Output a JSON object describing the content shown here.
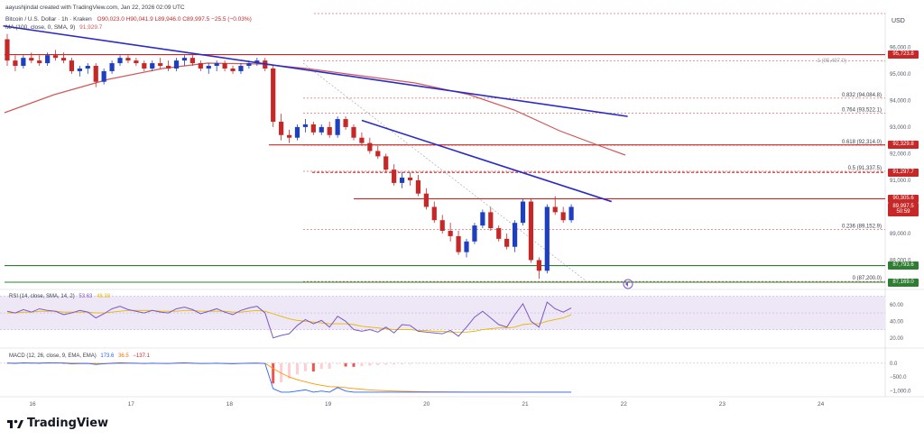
{
  "header": {
    "created_by": "aayushjindal created with TradingView.com, Jan 22, 2026 02:09 UTC",
    "symbol_line": "Bitcoin / U.S. Dollar · 1h · Kraken",
    "ohlc": "O90,023.0  H90,041.9  L89,946.0  C89,997.5  −25.5 (−0.03%)",
    "ma_line": "MA (100, close, 0, SMA, 9)",
    "ma_value": "91,929.7"
  },
  "currency": "USD",
  "chart_data": {
    "type": "candlestick",
    "x_ticks": [
      "16",
      "17",
      "18",
      "19",
      "20",
      "21",
      "22",
      "23",
      "24"
    ],
    "y_ticks": [
      96000,
      95000,
      94000,
      93000,
      92000,
      91000,
      90000,
      89000,
      88000
    ],
    "y_tick_labels": [
      "96,000.0",
      "95,000.0",
      "94,000.0",
      "93,000.0",
      "92,000.0",
      "91,000.0",
      "90,000.0",
      "89,000.0",
      "88,000.0"
    ],
    "ylim": [
      87000,
      97300
    ],
    "candles": [
      [
        96300,
        96500,
        95300,
        95500
      ],
      [
        95500,
        95700,
        95100,
        95300
      ],
      [
        95300,
        95700,
        95200,
        95600
      ],
      [
        95600,
        95800,
        95400,
        95500
      ],
      [
        95500,
        95700,
        95300,
        95400
      ],
      [
        95400,
        95800,
        95300,
        95700
      ],
      [
        95700,
        95900,
        95500,
        95600
      ],
      [
        95600,
        95800,
        95400,
        95500
      ],
      [
        95500,
        95600,
        95000,
        95100
      ],
      [
        95100,
        95300,
        94900,
        95200
      ],
      [
        95200,
        95400,
        95000,
        95300
      ],
      [
        95300,
        95400,
        94500,
        94700
      ],
      [
        94700,
        95200,
        94600,
        95100
      ],
      [
        95100,
        95500,
        95000,
        95400
      ],
      [
        95400,
        95700,
        95300,
        95600
      ],
      [
        95600,
        95700,
        95400,
        95500
      ],
      [
        95500,
        95600,
        95300,
        95400
      ],
      [
        95400,
        95500,
        95100,
        95200
      ],
      [
        95200,
        95500,
        95100,
        95400
      ],
      [
        95400,
        95600,
        95200,
        95300
      ],
      [
        95300,
        95500,
        95100,
        95200
      ],
      [
        95200,
        95600,
        95100,
        95500
      ],
      [
        95500,
        95700,
        95300,
        95600
      ],
      [
        95600,
        95700,
        95300,
        95400
      ],
      [
        95400,
        95500,
        95100,
        95200
      ],
      [
        95200,
        95400,
        95000,
        95300
      ],
      [
        95300,
        95500,
        95100,
        95400
      ],
      [
        95400,
        95500,
        95100,
        95200
      ],
      [
        95200,
        95300,
        95000,
        95100
      ],
      [
        95100,
        95400,
        95000,
        95300
      ],
      [
        95300,
        95500,
        95200,
        95400
      ],
      [
        95400,
        95600,
        95300,
        95500
      ],
      [
        95500,
        95600,
        95100,
        95200
      ],
      [
        95200,
        95300,
        93000,
        93200
      ],
      [
        93200,
        93500,
        92500,
        92700
      ],
      [
        92700,
        92900,
        92400,
        92600
      ],
      [
        92600,
        93100,
        92500,
        93000
      ],
      [
        93000,
        93300,
        92800,
        93100
      ],
      [
        93100,
        93200,
        92700,
        92800
      ],
      [
        92800,
        93100,
        92700,
        93000
      ],
      [
        93000,
        93200,
        92600,
        92700
      ],
      [
        92700,
        93400,
        92600,
        93300
      ],
      [
        93300,
        93400,
        92900,
        93000
      ],
      [
        93000,
        93100,
        92500,
        92600
      ],
      [
        92600,
        92800,
        92300,
        92400
      ],
      [
        92400,
        92600,
        92000,
        92100
      ],
      [
        92100,
        92300,
        91800,
        91900
      ],
      [
        91900,
        92000,
        91300,
        91400
      ],
      [
        91400,
        91600,
        90800,
        90900
      ],
      [
        90900,
        91300,
        90700,
        91100
      ],
      [
        91100,
        91300,
        90800,
        91000
      ],
      [
        91000,
        91200,
        90400,
        90500
      ],
      [
        90500,
        90700,
        89900,
        90000
      ],
      [
        90000,
        90200,
        89400,
        89500
      ],
      [
        89500,
        89700,
        89000,
        89100
      ],
      [
        89100,
        89400,
        88700,
        88900
      ],
      [
        88900,
        89100,
        88200,
        88300
      ],
      [
        88300,
        88800,
        88100,
        88700
      ],
      [
        88700,
        89400,
        88600,
        89300
      ],
      [
        89300,
        89900,
        89200,
        89800
      ],
      [
        89800,
        90000,
        89100,
        89200
      ],
      [
        89200,
        89300,
        88700,
        88800
      ],
      [
        88800,
        89000,
        88400,
        88500
      ],
      [
        88500,
        89500,
        88300,
        89400
      ],
      [
        89400,
        90300,
        89300,
        90200
      ],
      [
        90200,
        90300,
        87900,
        88000
      ],
      [
        88000,
        88100,
        87300,
        87600
      ],
      [
        87600,
        90100,
        87500,
        90000
      ],
      [
        90000,
        90400,
        89700,
        89800
      ],
      [
        89800,
        90000,
        89400,
        89500
      ],
      [
        89500,
        90100,
        89400,
        90000
      ]
    ],
    "horizontal_levels": [
      {
        "price": 95723.8,
        "color": "#c62828",
        "style": "solid"
      },
      {
        "price": 92329.8,
        "color": "#c62828",
        "style": "solid"
      },
      {
        "price": 91297.7,
        "color": "#c62828",
        "style": "dashed"
      },
      {
        "price": 90305.6,
        "color": "#c62828",
        "style": "solid"
      },
      {
        "price": 87793.6,
        "color": "#2e7d32",
        "style": "solid"
      },
      {
        "price": 87169.0,
        "color": "#2e7d32",
        "style": "solid"
      }
    ],
    "fib_levels": [
      {
        "label": "0.832 (94,084.8)",
        "price": 94084.8
      },
      {
        "label": "0.764 (93,522.1)",
        "price": 93522.1
      },
      {
        "label": "0.618 (92,314.0)",
        "price": 92314.0
      },
      {
        "label": "0.5 (91,337.5)",
        "price": 91337.5
      },
      {
        "label": "0.236 (89,152.9)",
        "price": 89152.9
      },
      {
        "label": "0 (87,200.0)",
        "price": 87200.0
      }
    ],
    "top_level_label": "1 (95,497.0)",
    "top_level_price": 95497.0,
    "trendlines": [
      {
        "from": [
          -0.5,
          96800
        ],
        "to": [
          77,
          93400
        ]
      },
      {
        "from": [
          44,
          93250
        ],
        "to": [
          75,
          90200
        ]
      }
    ],
    "price_tags": [
      {
        "label": "95,723.8",
        "price": 95723.8,
        "color": "#c62828"
      },
      {
        "label": "92,329.8",
        "price": 92329.8,
        "color": "#c62828"
      },
      {
        "label": "91,297.7",
        "price": 91297.7,
        "color": "#c62828"
      },
      {
        "label": "90,305.6",
        "price": 90305.6,
        "color": "#c62828"
      },
      {
        "label": "89,997.5",
        "price": 89997.5,
        "color": "#c62828"
      },
      {
        "label": "50:59",
        "price": 89800,
        "color": "#c62828"
      },
      {
        "label": "87,793.6",
        "price": 87793.6,
        "color": "#2e7d32"
      },
      {
        "label": "87,169.0",
        "price": 87169.0,
        "color": "#2e7d32"
      }
    ],
    "rsi": {
      "header": "RSI (14, close, SMA, 14, 2)",
      "value_a": "53.63",
      "value_b": "48.38",
      "ticks": [
        "60.00",
        "40.00",
        "20.00"
      ],
      "tick_values": [
        60,
        40,
        20
      ],
      "bands": [
        70,
        30
      ],
      "values": [
        52,
        50,
        54,
        51,
        55,
        53,
        52,
        48,
        50,
        53,
        51,
        44,
        49,
        55,
        58,
        54,
        52,
        50,
        53,
        51,
        50,
        55,
        57,
        54,
        49,
        52,
        55,
        51,
        48,
        53,
        56,
        58,
        50,
        20,
        23,
        25,
        35,
        42,
        37,
        41,
        33,
        46,
        40,
        30,
        28,
        30,
        27,
        33,
        26,
        36,
        35,
        28,
        27,
        26,
        25,
        29,
        22,
        33,
        45,
        52,
        44,
        36,
        33,
        48,
        61,
        40,
        33,
        63,
        55,
        51,
        56
      ],
      "signal": [
        50,
        50,
        51,
        51,
        52,
        52,
        52,
        51,
        51,
        51,
        51,
        50,
        50,
        51,
        52,
        53,
        53,
        53,
        53,
        52,
        52,
        52,
        53,
        53,
        52,
        52,
        52,
        52,
        51,
        51,
        52,
        53,
        52,
        49,
        46,
        43,
        41,
        40,
        39,
        38,
        37,
        37,
        37,
        36,
        34,
        33,
        32,
        31,
        30,
        30,
        30,
        29,
        29,
        28,
        28,
        27,
        27,
        27,
        28,
        30,
        31,
        32,
        32,
        33,
        36,
        37,
        37,
        40,
        42,
        44,
        48
      ]
    },
    "macd": {
      "header": "MACD (12, 26, close, 9, EMA, EMA)",
      "value_a": "173.6",
      "value_b": "36.5",
      "value_c": "−137.1",
      "ticks": [
        "0.0",
        "−500.0",
        "−1,000.0"
      ],
      "tick_values": [
        0,
        -500,
        -1000
      ],
      "ylim": [
        -1150,
        420
      ]
    }
  },
  "logo": {
    "text": "TradingView"
  }
}
